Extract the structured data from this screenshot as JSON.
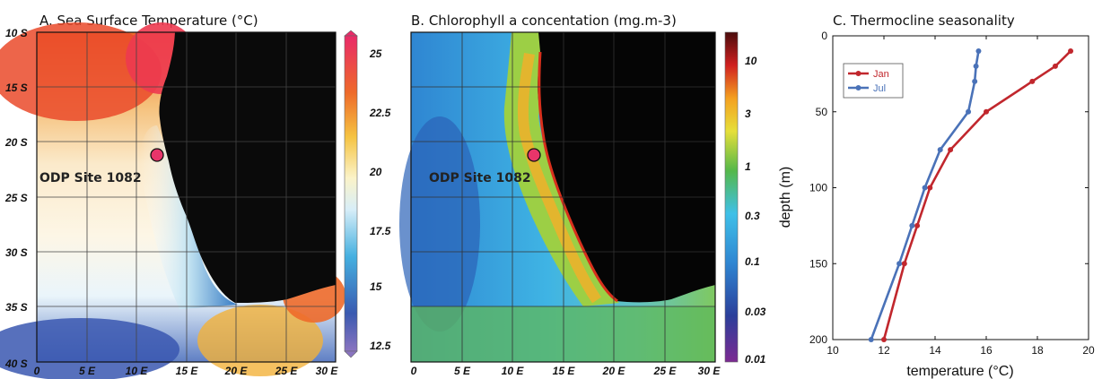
{
  "panels": {
    "a": {
      "title": "A. Sea Surface Temperature (°C)",
      "lat_labels": [
        "10 S",
        "15 S",
        "20 S",
        "25 S",
        "30 S",
        "35 S",
        "40 S"
      ],
      "lon_labels": [
        "0",
        "5 E",
        "10 E",
        "15 E",
        "20 E",
        "25 E",
        "30 E"
      ],
      "colorbar_labels": [
        "25",
        "22.5",
        "20",
        "17.5",
        "15",
        "12.5"
      ],
      "site_label": "ODP Site 1082"
    },
    "b": {
      "title": "B. Chlorophyll a concentation (mg.m-3)",
      "lon_labels": [
        "0",
        "5 E",
        "10 E",
        "15 E",
        "20 E",
        "25 E",
        "30 E"
      ],
      "colorbar_labels": [
        "10",
        "3",
        "1",
        "0.3",
        "0.1",
        "0.03",
        "0.01"
      ],
      "site_label": "ODP Site 1082"
    }
  },
  "chart_data": {
    "type": "line",
    "title": "C. Thermocline seasonality",
    "xlabel": "temperature (°C)",
    "ylabel": "depth (m)",
    "xlim": [
      10,
      20
    ],
    "ylim": [
      0,
      200
    ],
    "y_reversed": true,
    "xticks": [
      "10",
      "12",
      "14",
      "16",
      "18",
      "20"
    ],
    "yticks": [
      "0",
      "50",
      "100",
      "150",
      "200"
    ],
    "legend_position": "top-left",
    "series": [
      {
        "name": "Jan",
        "color": "#c1272d",
        "points": [
          [
            19.3,
            10
          ],
          [
            18.7,
            20
          ],
          [
            17.8,
            30
          ],
          [
            16.0,
            50
          ],
          [
            14.6,
            75
          ],
          [
            13.8,
            100
          ],
          [
            13.3,
            125
          ],
          [
            12.8,
            150
          ],
          [
            12.0,
            200
          ]
        ]
      },
      {
        "name": "Jul",
        "color": "#4a72b8",
        "points": [
          [
            15.7,
            10
          ],
          [
            15.6,
            20
          ],
          [
            15.55,
            30
          ],
          [
            15.3,
            50
          ],
          [
            14.2,
            75
          ],
          [
            13.6,
            100
          ],
          [
            13.1,
            125
          ],
          [
            12.6,
            150
          ],
          [
            11.5,
            200
          ]
        ]
      }
    ]
  }
}
